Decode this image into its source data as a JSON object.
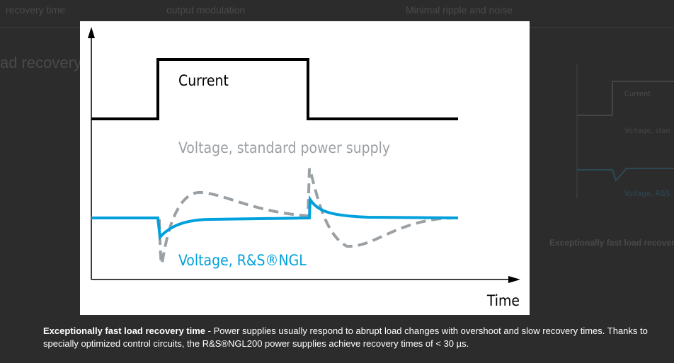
{
  "background": {
    "tabs": [
      "recovery time",
      "output modulation",
      "Minimal ripple and noise"
    ],
    "heading": "ad recovery",
    "side_thumbnail": {
      "current": "Current",
      "voltage_standard": "Voltage, stan",
      "voltage_ngl": "Voltage, R&S"
    },
    "side_caption": "Exceptionally fast load recover"
  },
  "diagram": {
    "current": "Current",
    "voltage_standard": "Voltage, standard power supply",
    "voltage_ngl": "Voltage, R&S®NGL",
    "x_axis": "Time"
  },
  "caption": {
    "title": "Exceptionally fast load recovery time",
    "text": " - Power supplies usually respond to abrupt load changes with overshoot and slow recovery times. Thanks to specially optimized control circuits, the R&S®NGL200 power supplies achieve recovery times of < 30 µs."
  }
}
